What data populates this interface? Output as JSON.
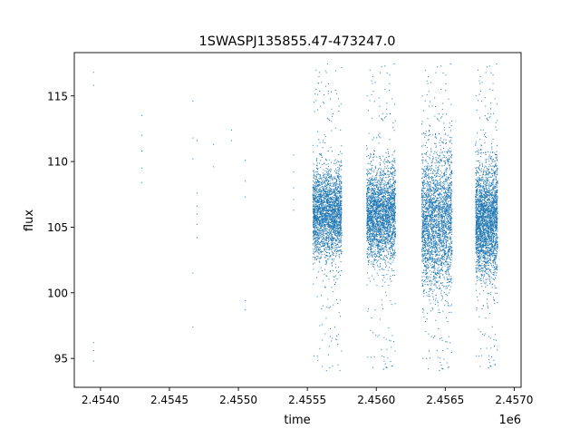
{
  "chart_data": {
    "type": "scatter",
    "title": "1SWASPJ135855.47-473247.0",
    "xlabel": "time",
    "ylabel": "flux",
    "x_offset_label": "1e6",
    "xlim": [
      2.45381,
      2.45705
    ],
    "ylim": [
      92.8,
      118.3
    ],
    "x_ticks": [
      2.454,
      2.4545,
      2.455,
      2.4555,
      2.456,
      2.4565,
      2.457
    ],
    "x_tick_labels": [
      "2.4540",
      "2.4545",
      "2.4550",
      "2.4555",
      "2.4560",
      "2.4565",
      "2.4570"
    ],
    "y_ticks": [
      95,
      100,
      105,
      110,
      115
    ],
    "y_tick_labels": [
      "95",
      "100",
      "105",
      "110",
      "115"
    ],
    "grid": false,
    "point_color": "#1f77b4",
    "sparse_points": [
      {
        "x": 2.45395,
        "y": 116.8
      },
      {
        "x": 2.45395,
        "y": 115.8
      },
      {
        "x": 2.45395,
        "y": 96.2
      },
      {
        "x": 2.45395,
        "y": 95.6
      },
      {
        "x": 2.45395,
        "y": 94.8
      },
      {
        "x": 2.4543,
        "y": 113.5
      },
      {
        "x": 2.4543,
        "y": 112.0
      },
      {
        "x": 2.4543,
        "y": 110.8
      },
      {
        "x": 2.4543,
        "y": 109.5
      },
      {
        "x": 2.4543,
        "y": 108.4
      },
      {
        "x": 2.45467,
        "y": 114.6
      },
      {
        "x": 2.45467,
        "y": 111.8
      },
      {
        "x": 2.45467,
        "y": 110.2
      },
      {
        "x": 2.45467,
        "y": 101.5
      },
      {
        "x": 2.45467,
        "y": 97.4
      },
      {
        "x": 2.4547,
        "y": 111.6
      },
      {
        "x": 2.4547,
        "y": 107.6
      },
      {
        "x": 2.4547,
        "y": 106.6
      },
      {
        "x": 2.4547,
        "y": 106.0
      },
      {
        "x": 2.4547,
        "y": 105.2
      },
      {
        "x": 2.4547,
        "y": 104.2
      },
      {
        "x": 2.45482,
        "y": 111.3
      },
      {
        "x": 2.45482,
        "y": 109.6
      },
      {
        "x": 2.45495,
        "y": 112.4
      },
      {
        "x": 2.45495,
        "y": 111.6
      },
      {
        "x": 2.45505,
        "y": 110.1
      },
      {
        "x": 2.45505,
        "y": 108.5
      },
      {
        "x": 2.45505,
        "y": 107.3
      },
      {
        "x": 2.45505,
        "y": 99.4
      },
      {
        "x": 2.45505,
        "y": 98.7
      },
      {
        "x": 2.4554,
        "y": 110.5
      },
      {
        "x": 2.4554,
        "y": 109.2
      },
      {
        "x": 2.4554,
        "y": 108.0
      },
      {
        "x": 2.4554,
        "y": 107.1
      },
      {
        "x": 2.4554,
        "y": 106.3
      }
    ],
    "dense_seasons": [
      {
        "x_start": 2.45554,
        "x_end": 2.45575,
        "center": 106.0,
        "spread": 3.0,
        "y_min": 94.0,
        "y_max": 117.5
      },
      {
        "x_start": 2.45593,
        "x_end": 2.45614,
        "center": 106.0,
        "spread": 3.2,
        "y_min": 93.9,
        "y_max": 117.5
      },
      {
        "x_start": 2.45633,
        "x_end": 2.45655,
        "center": 105.5,
        "spread": 4.8,
        "y_min": 93.8,
        "y_max": 117.5
      },
      {
        "x_start": 2.45672,
        "x_end": 2.45688,
        "center": 105.5,
        "spread": 3.8,
        "y_min": 94.0,
        "y_max": 117.5
      }
    ]
  }
}
